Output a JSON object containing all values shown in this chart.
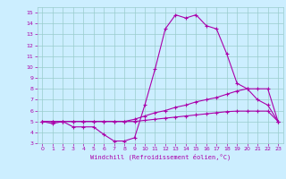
{
  "xlabel": "Windchill (Refroidissement éolien,°C)",
  "bg_color": "#cceeff",
  "line_color": "#aa00aa",
  "grid_color": "#99cccc",
  "xlim": [
    -0.5,
    23.5
  ],
  "ylim": [
    3,
    15.5
  ],
  "yticks": [
    3,
    4,
    5,
    6,
    7,
    8,
    9,
    10,
    11,
    12,
    13,
    14,
    15
  ],
  "xticks": [
    0,
    1,
    2,
    3,
    4,
    5,
    6,
    7,
    8,
    9,
    10,
    11,
    12,
    13,
    14,
    15,
    16,
    17,
    18,
    19,
    20,
    21,
    22,
    23
  ],
  "line1_x": [
    0,
    1,
    2,
    3,
    4,
    5,
    6,
    7,
    8,
    9,
    10,
    11,
    12,
    13,
    14,
    15,
    16,
    17,
    18,
    19,
    20,
    21,
    22,
    23
  ],
  "line1_y": [
    5.0,
    4.8,
    5.0,
    4.5,
    4.5,
    4.5,
    3.8,
    3.2,
    3.2,
    3.5,
    6.5,
    9.8,
    13.5,
    14.8,
    14.5,
    14.8,
    13.8,
    13.5,
    11.2,
    8.5,
    8.0,
    7.0,
    6.5,
    5.0
  ],
  "line2_x": [
    0,
    1,
    2,
    3,
    4,
    5,
    6,
    7,
    8,
    9,
    10,
    11,
    12,
    13,
    14,
    15,
    16,
    17,
    18,
    19,
    20,
    21,
    22,
    23
  ],
  "line2_y": [
    5.0,
    5.0,
    5.0,
    5.0,
    5.0,
    5.0,
    5.0,
    5.0,
    5.0,
    5.2,
    5.5,
    5.8,
    6.0,
    6.3,
    6.5,
    6.8,
    7.0,
    7.2,
    7.5,
    7.8,
    8.0,
    8.0,
    8.0,
    5.0
  ],
  "line3_x": [
    0,
    1,
    2,
    3,
    4,
    5,
    6,
    7,
    8,
    9,
    10,
    11,
    12,
    13,
    14,
    15,
    16,
    17,
    18,
    19,
    20,
    21,
    22,
    23
  ],
  "line3_y": [
    5.0,
    5.0,
    5.0,
    5.0,
    5.0,
    5.0,
    5.0,
    5.0,
    5.0,
    5.0,
    5.1,
    5.2,
    5.3,
    5.4,
    5.5,
    5.6,
    5.7,
    5.8,
    5.9,
    5.95,
    5.95,
    5.95,
    5.95,
    5.0
  ]
}
